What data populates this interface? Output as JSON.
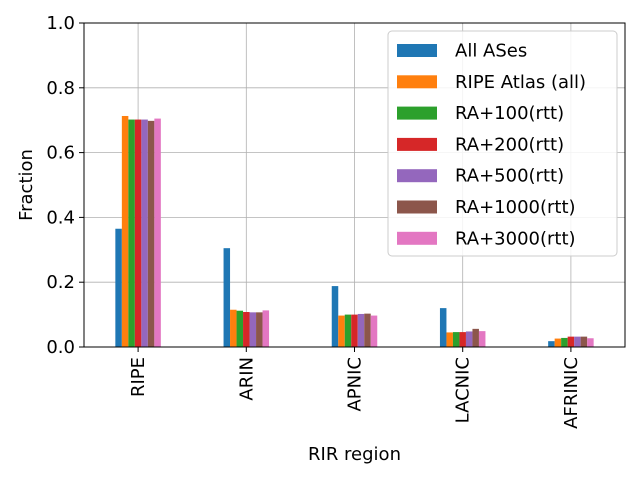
{
  "chart_data": {
    "type": "bar",
    "title": "",
    "xlabel": "RIR region",
    "ylabel": "Fraction",
    "ylim": [
      0,
      1.0
    ],
    "yticks": [
      "0.0",
      "0.2",
      "0.4",
      "0.6",
      "0.8",
      "1.0"
    ],
    "grid": true,
    "legend_position": "top-right",
    "categories": [
      "RIPE",
      "ARIN",
      "APNIC",
      "LACNIC",
      "AFRINIC"
    ],
    "series": [
      {
        "name": "All ASes",
        "color": "#1f77b4",
        "values": [
          0.365,
          0.305,
          0.188,
          0.12,
          0.018
        ]
      },
      {
        "name": "RIPE Atlas (all)",
        "color": "#ff7f0e",
        "values": [
          0.713,
          0.115,
          0.097,
          0.045,
          0.026
        ]
      },
      {
        "name": "RA+100(rtt)",
        "color": "#2ca02c",
        "values": [
          0.702,
          0.112,
          0.1,
          0.046,
          0.028
        ]
      },
      {
        "name": "RA+200(rtt)",
        "color": "#d62728",
        "values": [
          0.702,
          0.108,
          0.1,
          0.046,
          0.032
        ]
      },
      {
        "name": "RA+500(rtt)",
        "color": "#9467bd",
        "values": [
          0.702,
          0.107,
          0.102,
          0.048,
          0.032
        ]
      },
      {
        "name": "RA+1000(rtt)",
        "color": "#8c564b",
        "values": [
          0.698,
          0.107,
          0.103,
          0.056,
          0.032
        ]
      },
      {
        "name": "RA+3000(rtt)",
        "color": "#e377c2",
        "values": [
          0.705,
          0.113,
          0.097,
          0.049,
          0.027
        ]
      }
    ]
  }
}
